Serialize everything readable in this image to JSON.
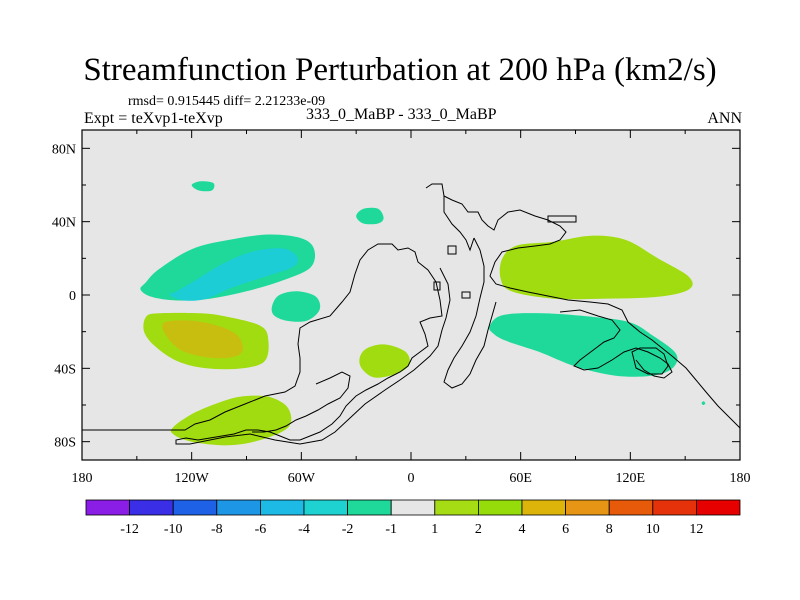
{
  "title": "Streamfunction Perturbation at 200 hPa (km2/s)",
  "header": {
    "stats": "rmsd= 0.915445 diff= 2.21233e-09",
    "experiment": "Expt = teXvp1-teXvp",
    "case": "333_0_MaBP - 333_0_MaBP",
    "season": "ANN"
  },
  "colors": {
    "background": "#e6e6e6",
    "coastline": "#000000",
    "levels": [
      "#8a1ee6",
      "#3a2ee6",
      "#1e60e6",
      "#1e96e6",
      "#1ebae6",
      "#1ed2d2",
      "#1ed99a",
      "#e6e6e6",
      "#a6dc14",
      "#96dc0a",
      "#dcb40a",
      "#e69614",
      "#e65a0a",
      "#e6320a",
      "#e60000"
    ]
  },
  "chart_data": {
    "type": "heatmap",
    "subtype": "filled contour map (cylindrical equidistant)",
    "title": "Streamfunction Perturbation at 200 hPa (km2/s)",
    "units": "km2/s",
    "xlim": [
      -180,
      180
    ],
    "ylim": [
      -90,
      90
    ],
    "x_ticks": [
      {
        "value": -180,
        "label": "180"
      },
      {
        "value": -120,
        "label": "120W"
      },
      {
        "value": -60,
        "label": "60W"
      },
      {
        "value": 0,
        "label": "0"
      },
      {
        "value": 60,
        "label": "60E"
      },
      {
        "value": 120,
        "label": "120E"
      },
      {
        "value": 180,
        "label": "180"
      }
    ],
    "y_ticks": [
      {
        "value": 80,
        "label": "80N"
      },
      {
        "value": 40,
        "label": "40N"
      },
      {
        "value": 0,
        "label": "0"
      },
      {
        "value": -40,
        "label": "40S"
      },
      {
        "value": -80,
        "label": "80S"
      }
    ],
    "colorbar": {
      "labels": [
        "-12",
        "-10",
        "-8",
        "-6",
        "-4",
        "-2",
        "-1",
        "1",
        "2",
        "4",
        "6",
        "8",
        "10",
        "12"
      ],
      "boxes": 15
    },
    "regions": [
      {
        "name": "negative-anomaly-north-pacific",
        "level": -2,
        "lon": -120,
        "lat": 10,
        "points": [
          [
            -145,
            7
          ],
          [
            -138,
            14
          ],
          [
            -120,
            25
          ],
          [
            -100,
            30
          ],
          [
            -78,
            33
          ],
          [
            -60,
            31
          ],
          [
            -53,
            25
          ],
          [
            -55,
            15
          ],
          [
            -70,
            8
          ],
          [
            -90,
            2
          ],
          [
            -110,
            -2
          ],
          [
            -128,
            -3
          ],
          [
            -142,
            -1
          ],
          [
            -148,
            3
          ]
        ]
      },
      {
        "name": "negative-anomaly-north-pacific-core",
        "level": -4,
        "lon": -110,
        "lat": 12,
        "points": [
          [
            -128,
            2
          ],
          [
            -118,
            8
          ],
          [
            -105,
            16
          ],
          [
            -92,
            22
          ],
          [
            -80,
            25
          ],
          [
            -68,
            25
          ],
          [
            -62,
            20
          ],
          [
            -65,
            15
          ],
          [
            -80,
            10
          ],
          [
            -98,
            4
          ],
          [
            -112,
            -2
          ],
          [
            -124,
            -3
          ],
          [
            -132,
            0
          ]
        ]
      },
      {
        "name": "negative-anomaly-tropical-pacific",
        "level": -1,
        "lon": -66,
        "lat": -6,
        "points": [
          [
            -76,
            -6
          ],
          [
            -72,
            0
          ],
          [
            -62,
            2
          ],
          [
            -52,
            -1
          ],
          [
            -50,
            -8
          ],
          [
            -57,
            -14
          ],
          [
            -68,
            -14
          ],
          [
            -75,
            -11
          ]
        ]
      },
      {
        "name": "negative-anomaly-south-pacific-outer",
        "level": 1,
        "lon": -110,
        "lat": -20,
        "points": [
          [
            -145,
            -12
          ],
          [
            -138,
            -10
          ],
          [
            -115,
            -10
          ],
          [
            -100,
            -12
          ],
          [
            -82,
            -17
          ],
          [
            -78,
            -25
          ],
          [
            -80,
            -36
          ],
          [
            -92,
            -40
          ],
          [
            -112,
            -40
          ],
          [
            -128,
            -36
          ],
          [
            -140,
            -28
          ],
          [
            -146,
            -20
          ]
        ]
      },
      {
        "name": "positive-anomaly-south-pacific",
        "level": 4,
        "lon": -112,
        "lat": -20,
        "points": [
          [
            -135,
            -15
          ],
          [
            -120,
            -14
          ],
          [
            -105,
            -17
          ],
          [
            -95,
            -22
          ],
          [
            -92,
            -30
          ],
          [
            -98,
            -34
          ],
          [
            -112,
            -34
          ],
          [
            -126,
            -30
          ],
          [
            -134,
            -22
          ]
        ]
      },
      {
        "name": "positive-anomaly-southern-ocean",
        "level": 2,
        "lon": -95,
        "lat": -67,
        "points": [
          [
            -130,
            -72
          ],
          [
            -118,
            -64
          ],
          [
            -100,
            -57
          ],
          [
            -88,
            -55
          ],
          [
            -76,
            -56
          ],
          [
            -67,
            -62
          ],
          [
            -67,
            -72
          ],
          [
            -82,
            -79
          ],
          [
            -100,
            -82
          ],
          [
            -120,
            -80
          ],
          [
            -130,
            -76
          ]
        ]
      },
      {
        "name": "positive-anomaly-south-atlantic",
        "level": 2,
        "lon": -16,
        "lat": -36,
        "points": [
          [
            -28,
            -34
          ],
          [
            -24,
            -29
          ],
          [
            -14,
            -27
          ],
          [
            -3,
            -31
          ],
          [
            -1,
            -38
          ],
          [
            -8,
            -43
          ],
          [
            -20,
            -45
          ],
          [
            -27,
            -40
          ]
        ]
      },
      {
        "name": "negative-anomaly-north-atlantic",
        "level": -1,
        "lon": -23,
        "lat": 43,
        "points": [
          [
            -30,
            43
          ],
          [
            -26,
            47
          ],
          [
            -18,
            47
          ],
          [
            -15,
            42
          ],
          [
            -18,
            39
          ],
          [
            -26,
            39
          ]
        ]
      },
      {
        "name": "negative-anomaly-arctic",
        "level": -1,
        "lon": -114,
        "lat": 59,
        "points": [
          [
            -120,
            60
          ],
          [
            -115,
            62
          ],
          [
            -108,
            61
          ],
          [
            -109,
            57
          ],
          [
            -116,
            57
          ]
        ]
      },
      {
        "name": "positive-anomaly-asia-pacific",
        "level": 2,
        "lon": 100,
        "lat": 15,
        "points": [
          [
            50,
            20
          ],
          [
            58,
            27
          ],
          [
            78,
            29
          ],
          [
            95,
            32
          ],
          [
            108,
            32
          ],
          [
            120,
            29
          ],
          [
            135,
            20
          ],
          [
            152,
            10
          ],
          [
            152,
            3
          ],
          [
            135,
            -1
          ],
          [
            105,
            -2
          ],
          [
            78,
            -2
          ],
          [
            55,
            2
          ],
          [
            49,
            9
          ]
        ]
      },
      {
        "name": "negative-anomaly-indian-ocean",
        "level": -1,
        "lon": 95,
        "lat": -25,
        "points": [
          [
            43,
            -17
          ],
          [
            50,
            -11
          ],
          [
            72,
            -10
          ],
          [
            100,
            -12
          ],
          [
            120,
            -15
          ],
          [
            132,
            -22
          ],
          [
            145,
            -32
          ],
          [
            143,
            -40
          ],
          [
            132,
            -44
          ],
          [
            112,
            -44
          ],
          [
            90,
            -39
          ],
          [
            70,
            -31
          ],
          [
            52,
            -25
          ],
          [
            45,
            -21
          ]
        ]
      },
      {
        "name": "negative-anomaly-dot",
        "level": -1,
        "lon": 160,
        "lat": -59,
        "points": [
          [
            159,
            -59
          ],
          [
            160,
            -58
          ],
          [
            161,
            -59
          ],
          [
            160,
            -60
          ]
        ]
      }
    ]
  }
}
